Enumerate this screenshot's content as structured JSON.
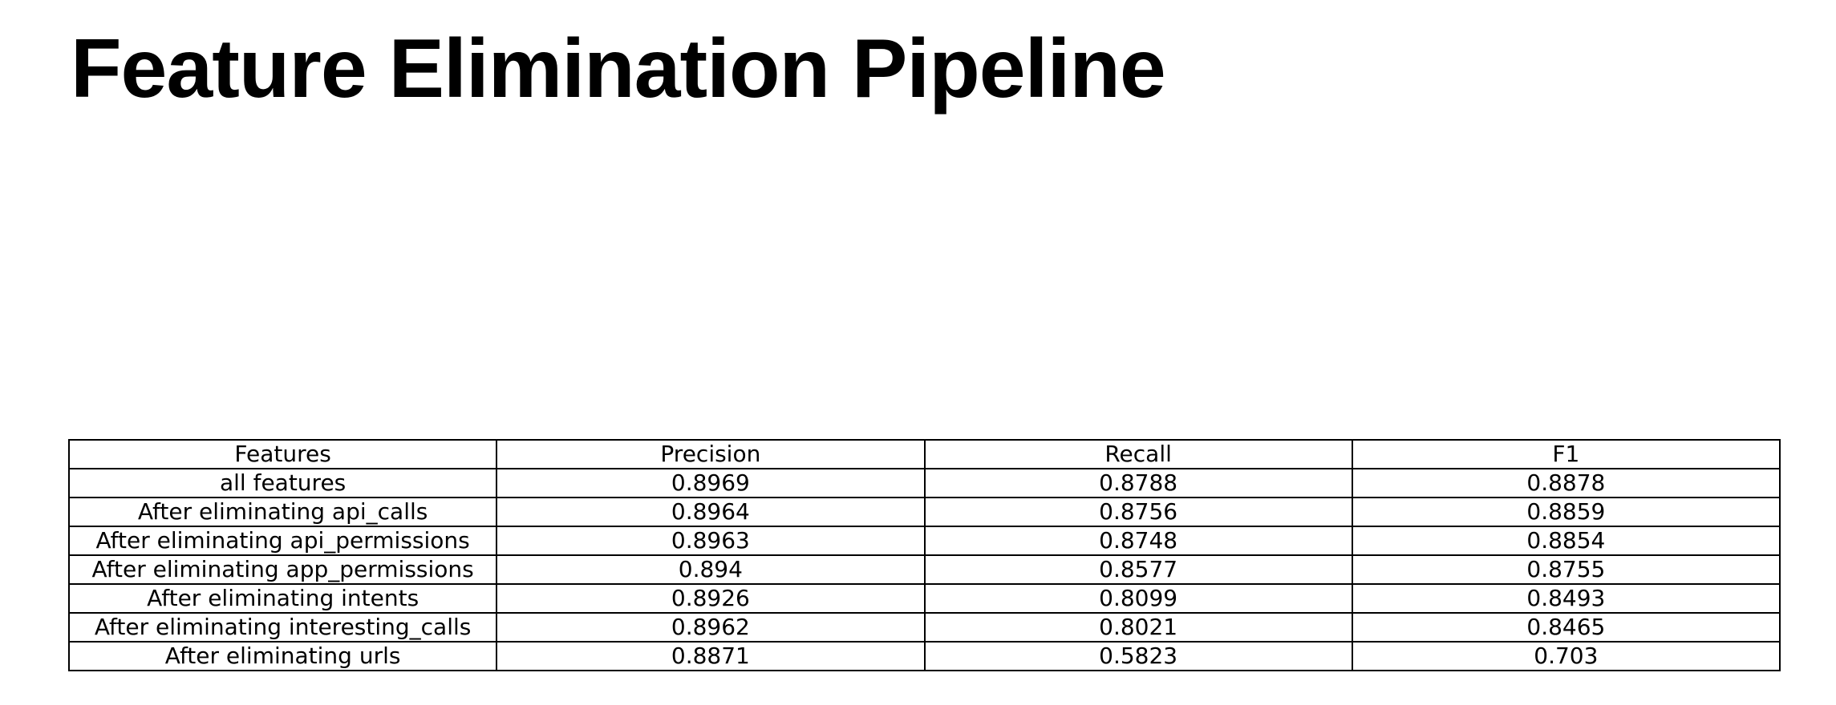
{
  "slide": {
    "title": "Feature Elimination Pipeline"
  },
  "table": {
    "columns": [
      "Features",
      "Precision",
      "Recall",
      "F1"
    ],
    "rows": [
      [
        "all features",
        "0.8969",
        "0.8788",
        "0.8878"
      ],
      [
        "After eliminating api_calls",
        "0.8964",
        "0.8756",
        "0.8859"
      ],
      [
        "After eliminating api_permissions",
        "0.8963",
        "0.8748",
        "0.8854"
      ],
      [
        "After eliminating app_permissions",
        "0.894",
        "0.8577",
        "0.8755"
      ],
      [
        "After eliminating intents",
        "0.8926",
        "0.8099",
        "0.8493"
      ],
      [
        "After eliminating interesting_calls",
        "0.8962",
        "0.8021",
        "0.8465"
      ],
      [
        "After eliminating urls",
        "0.8871",
        "0.5823",
        "0.703"
      ]
    ]
  }
}
